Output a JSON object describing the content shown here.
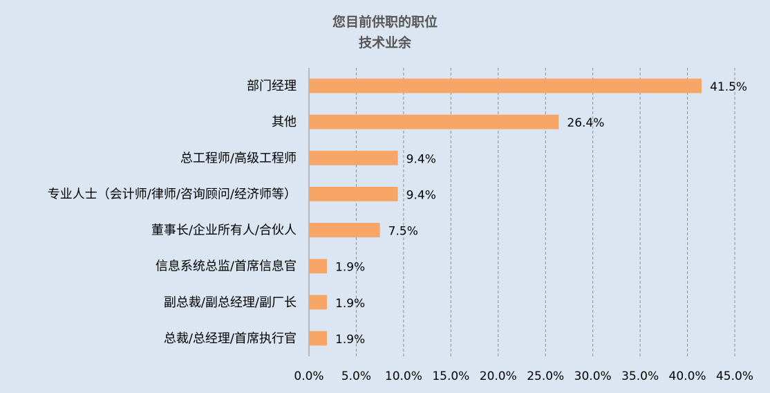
{
  "chart_data": {
    "type": "bar",
    "orientation": "horizontal",
    "title": "您目前供职的职位",
    "subtitle": "技术业余",
    "categories": [
      "部门经理",
      "其他",
      "总工程师/高级工程师",
      "专业人士（会计师/律师/咨询顾问/经济师等）",
      "董事长/企业所有人/合伙人",
      "信息系统总监/首席信息官",
      "副总裁/副总经理/副厂长",
      "总裁/总经理/首席执行官"
    ],
    "values": [
      41.5,
      26.4,
      9.4,
      9.4,
      7.5,
      1.9,
      1.9,
      1.9
    ],
    "value_labels": [
      "41.5%",
      "26.4%",
      "9.4%",
      "9.4%",
      "7.5%",
      "1.9%",
      "1.9%",
      "1.9%"
    ],
    "xlim": [
      0,
      45
    ],
    "x_ticks": [
      "0.0%",
      "5.0%",
      "10.0%",
      "15.0%",
      "20.0%",
      "25.0%",
      "30.0%",
      "35.0%",
      "40.0%",
      "45.0%"
    ],
    "xlabel": "",
    "ylabel": "",
    "grid": "vertical dashed",
    "legend": "none",
    "colors": {
      "bar": "#f7a668",
      "background": "#dce6f2",
      "grid": "#8c8c8c",
      "title": "#555555"
    }
  }
}
